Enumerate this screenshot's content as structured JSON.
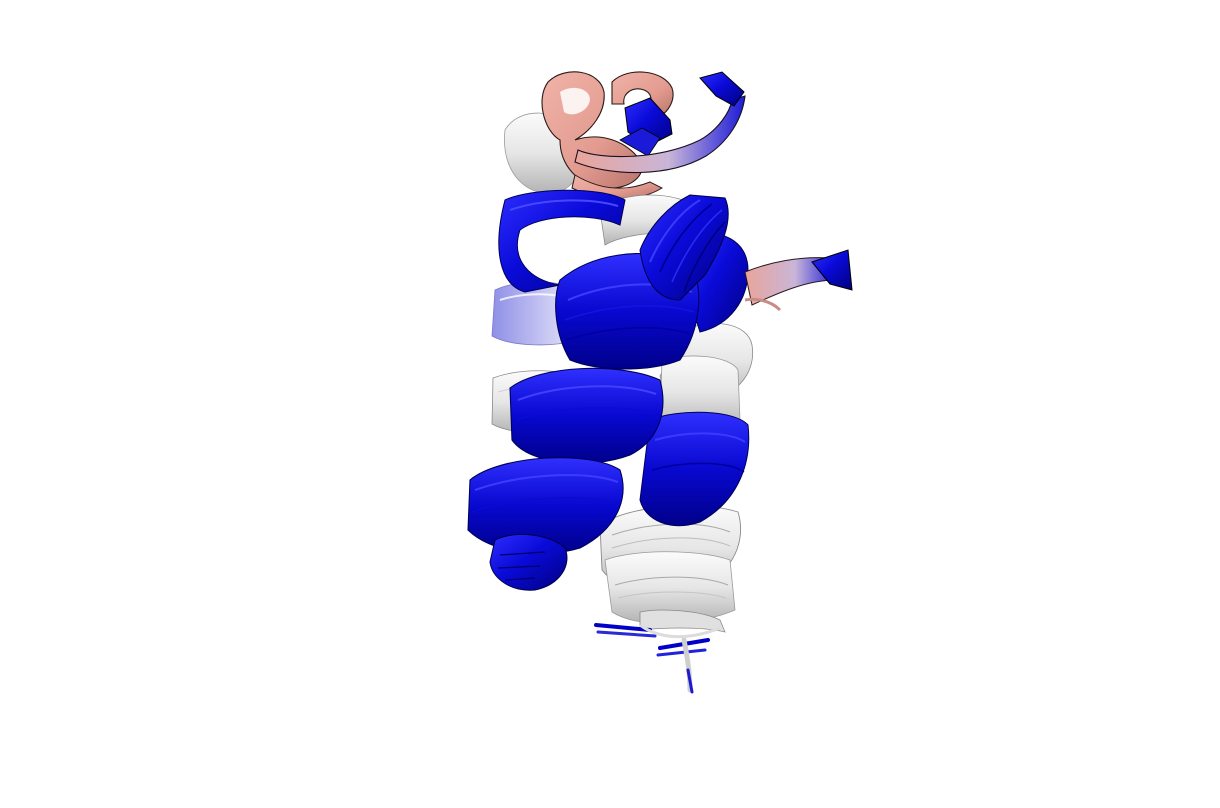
{
  "scene": {
    "background": "#ffffff",
    "subject": "protein-ribbon-ensemble",
    "colors": {
      "helix_blue": "#0a0ad8",
      "helix_blue_dark": "#00009a",
      "helix_blue_light": "#4b4bff",
      "helix_white": "#ececec",
      "helix_white_shade": "#bdbdbd",
      "helix_lavender": "#b9b9f0",
      "loop_salmon": "#e9a59a",
      "loop_salmon_dark": "#b8746b",
      "loop_pink": "#f3c6bf"
    }
  }
}
